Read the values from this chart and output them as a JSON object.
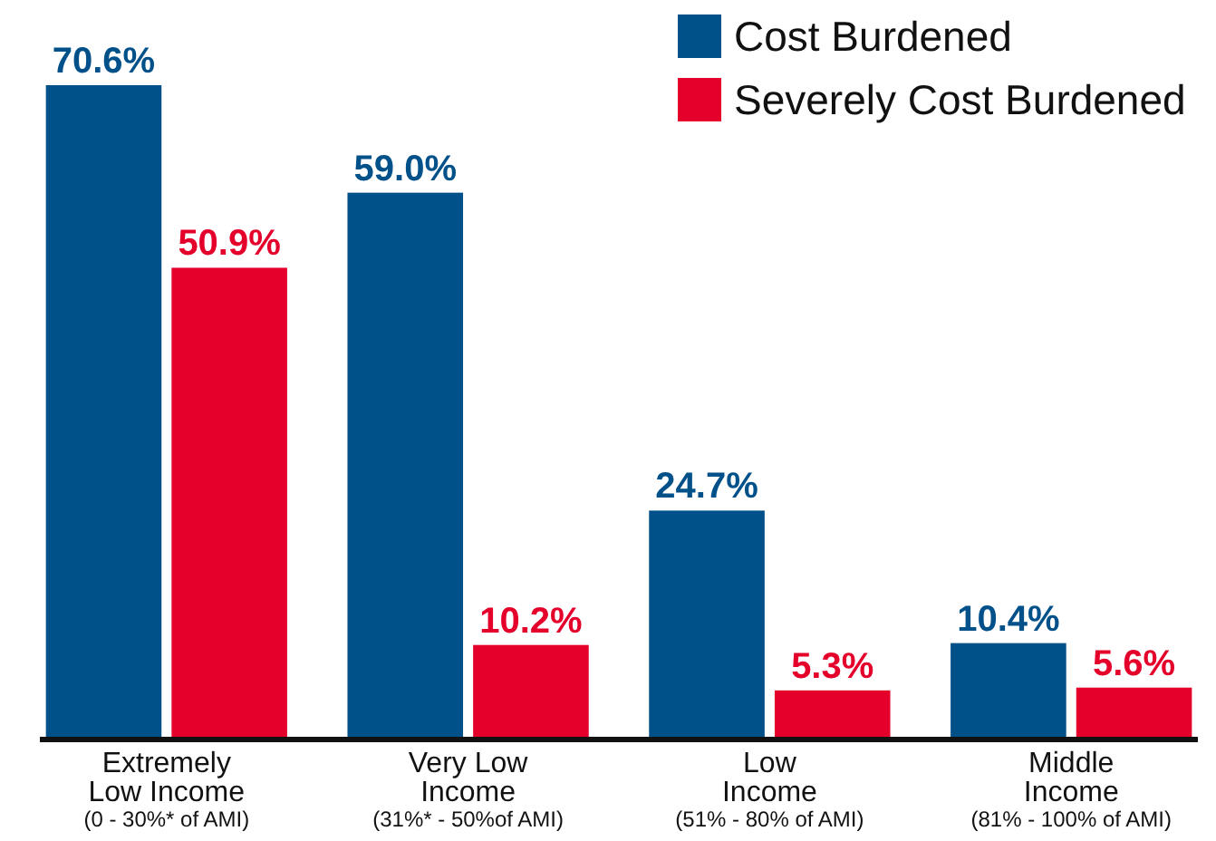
{
  "chart_data": {
    "type": "bar",
    "categories": [
      "Extremely\nLow Income\n(0 - 30%* of AMI)",
      "Very Low\nIncome\n(31%* - 50%of AMI)",
      "Low\nIncome\n(51% - 80% of AMI)",
      "Middle\nIncome\n(81% - 100% of AMI)"
    ],
    "series": [
      {
        "name": "Cost Burdened",
        "color": "#00508a",
        "values": [
          70.6,
          59.0,
          24.7,
          10.4
        ],
        "value_labels": [
          "70.6%",
          "59.0%",
          "24.7%",
          "10.4%"
        ]
      },
      {
        "name": "Severely Cost Burdened",
        "color": "#e4002b",
        "values": [
          50.9,
          10.2,
          5.3,
          5.6
        ],
        "value_labels": [
          "50.9%",
          "10.2%",
          "5.3%",
          "5.6%"
        ]
      }
    ],
    "legend": "top right"
  }
}
